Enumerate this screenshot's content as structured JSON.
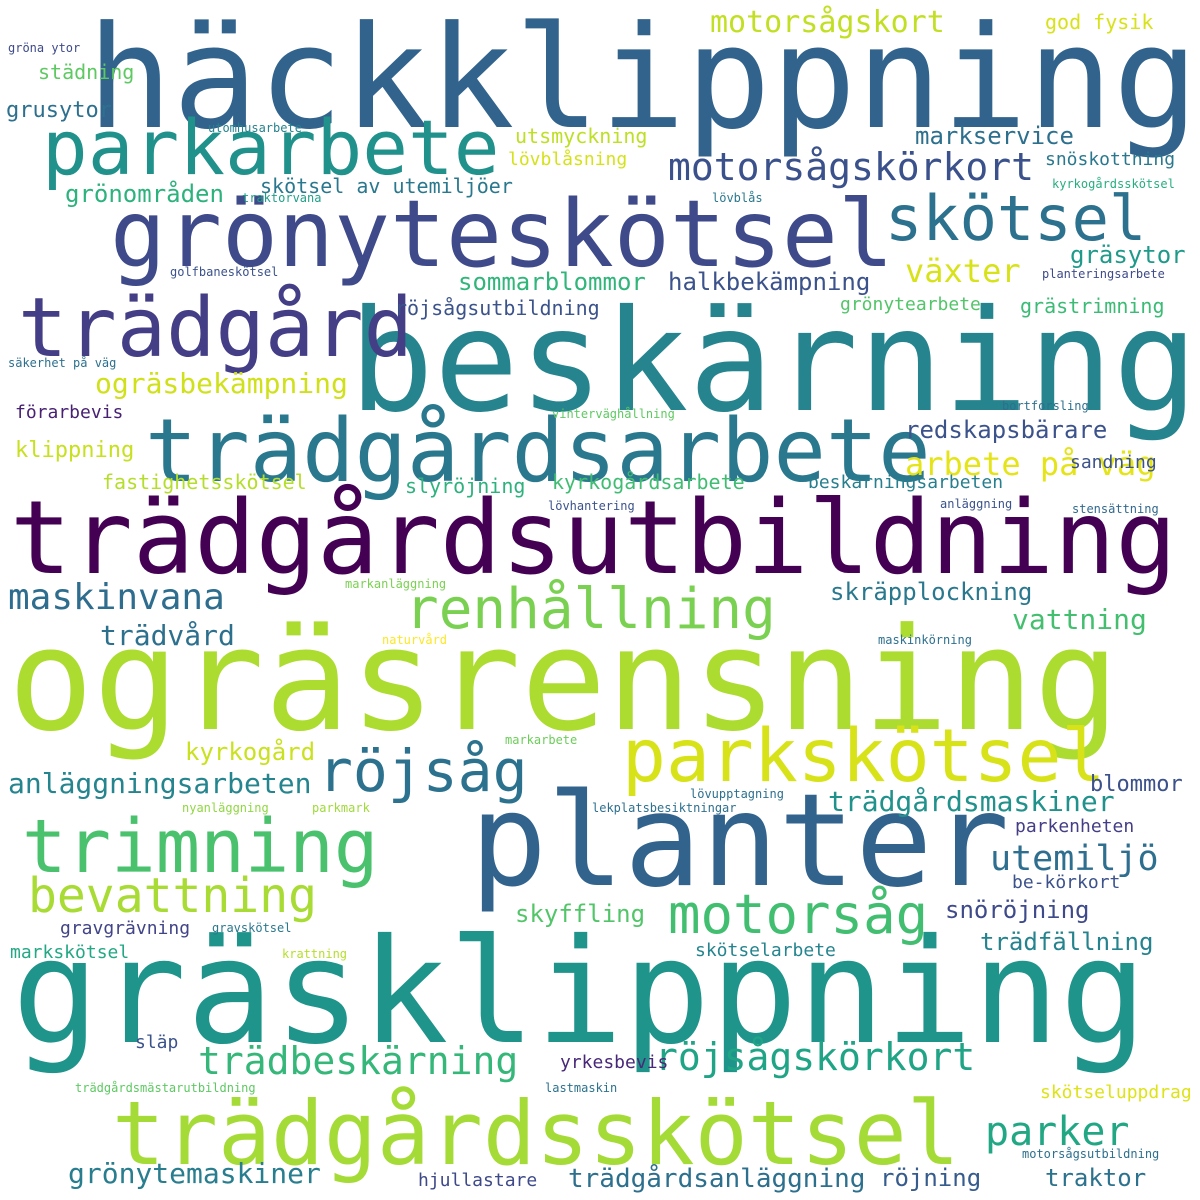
{
  "words": [
    {
      "text": "häckklippning",
      "color": "#31638d"
    },
    {
      "text": "beskärning",
      "color": "#25848e"
    },
    {
      "text": "ogräsrensning",
      "color": "#addc30"
    },
    {
      "text": "gräsklippning",
      "color": "#1f948b"
    },
    {
      "text": "trädgårdsutbildning",
      "color": "#440154"
    },
    {
      "text": "grönyteskötsel",
      "color": "#3e4a89"
    },
    {
      "text": "trädgårdsarbete",
      "color": "#2a788e"
    },
    {
      "text": "planter",
      "color": "#31638d"
    },
    {
      "text": "trädgårdsskötsel",
      "color": "#a5db36"
    },
    {
      "text": "parkarbete",
      "color": "#21918c"
    },
    {
      "text": "trädgård",
      "color": "#433e85"
    },
    {
      "text": "parkskötsel",
      "color": "#d8e219"
    },
    {
      "text": "trimning",
      "color": "#4ac16d"
    },
    {
      "text": "renhållning",
      "color": "#7ad151"
    },
    {
      "text": "skötsel",
      "color": "#2c718e"
    },
    {
      "text": "röjsåg",
      "color": "#2c728e"
    },
    {
      "text": "motorsåg",
      "color": "#42be71"
    },
    {
      "text": "motorsågskörkort",
      "color": "#3b518b"
    },
    {
      "text": "bevattning",
      "color": "#a8db34"
    },
    {
      "text": "trädbeskärning",
      "color": "#35b779"
    },
    {
      "text": "röjsågskörkort",
      "color": "#20a486"
    },
    {
      "text": "parker",
      "color": "#22a785"
    },
    {
      "text": "utemiljö",
      "color": "#2e6e8e"
    },
    {
      "text": "maskinvana",
      "color": "#2e6d8e"
    },
    {
      "text": "växter",
      "color": "#d8e219"
    },
    {
      "text": "arbete på väg",
      "color": "#e5e419"
    },
    {
      "text": "motorsågskort",
      "color": "#c2df23"
    },
    {
      "text": "ogräsbekämpning",
      "color": "#d0e11c"
    },
    {
      "text": "trädgårdsmaskiner",
      "color": "#21918c"
    },
    {
      "text": "grönytemaskiner",
      "color": "#287d8e"
    },
    {
      "text": "trädgårdsanläggning",
      "color": "#2d708e"
    },
    {
      "text": "anläggningsarbeten",
      "color": "#25858e"
    },
    {
      "text": "halkbekämpning",
      "color": "#3b528b"
    },
    {
      "text": "sommarblommor",
      "color": "#31b57b"
    },
    {
      "text": "markservice",
      "color": "#2d708e"
    },
    {
      "text": "gräsytor",
      "color": "#1f9a8a"
    },
    {
      "text": "redskapsbärare",
      "color": "#3b528b"
    },
    {
      "text": "skräpplockning",
      "color": "#2a788e"
    },
    {
      "text": "vattning",
      "color": "#44bf70"
    },
    {
      "text": "trädvård",
      "color": "#2d708e"
    },
    {
      "text": "kyrkogård",
      "color": "#cae11f"
    },
    {
      "text": "snöröjning",
      "color": "#3e4a89"
    },
    {
      "text": "trädfällning",
      "color": "#25838e"
    },
    {
      "text": "skyffling",
      "color": "#52c569"
    },
    {
      "text": "traktor",
      "color": "#2c728e"
    },
    {
      "text": "röjning",
      "color": "#365c8d"
    },
    {
      "text": "blommor",
      "color": "#3b518b"
    },
    {
      "text": "grönområden",
      "color": "#2db27d"
    },
    {
      "text": "skötsel av utemiljöer",
      "color": "#2a788e"
    },
    {
      "text": "röjsågsutbildning",
      "color": "#3b528b"
    },
    {
      "text": "utsmyckning",
      "color": "#bddf26"
    },
    {
      "text": "lövblåsning",
      "color": "#d5e21a"
    },
    {
      "text": "städning",
      "color": "#5ec962"
    },
    {
      "text": "grusytor",
      "color": "#2d708e"
    },
    {
      "text": "god fysik",
      "color": "#d8e219"
    },
    {
      "text": "snöskottning",
      "color": "#2a788e"
    },
    {
      "text": "grästrimning",
      "color": "#3bbb75"
    },
    {
      "text": "grönytearbete",
      "color": "#52c569"
    },
    {
      "text": "klippning",
      "color": "#c8e020"
    },
    {
      "text": "fastighetsskötsel",
      "color": "#b5de2b"
    },
    {
      "text": "slyröjning",
      "color": "#2db27d"
    },
    {
      "text": "kyrkogårdsarbete",
      "color": "#40bd72"
    },
    {
      "text": "beskärningsarbeten",
      "color": "#277f8e"
    },
    {
      "text": "sandning",
      "color": "#3b528b"
    },
    {
      "text": "förarbevis",
      "color": "#482173"
    },
    {
      "text": "be-körkort",
      "color": "#3b528b"
    },
    {
      "text": "parkenheten",
      "color": "#433e85"
    },
    {
      "text": "skötselarbete",
      "color": "#25848e"
    },
    {
      "text": "gravgrävning",
      "color": "#414487"
    },
    {
      "text": "markskötsel",
      "color": "#22a884"
    },
    {
      "text": "yrkesbevis",
      "color": "#482878"
    },
    {
      "text": "släp",
      "color": "#3b528b"
    },
    {
      "text": "hjullastare",
      "color": "#3e4989"
    },
    {
      "text": "skötseluppdrag",
      "color": "#dde318"
    },
    {
      "text": "gröna ytor",
      "color": "#3e4a89"
    },
    {
      "text": "utomhusarbete",
      "color": "#26828e"
    },
    {
      "text": "traktorvana",
      "color": "#1fa088"
    },
    {
      "text": "lövblås",
      "color": "#2a788e"
    },
    {
      "text": "kyrkogårdsskötsel",
      "color": "#27ad81"
    },
    {
      "text": "golfbaneskötsel",
      "color": "#3b528b"
    },
    {
      "text": "planteringsarbete",
      "color": "#3e4a89"
    },
    {
      "text": "säkerhet på väg",
      "color": "#2d708e"
    },
    {
      "text": "vinterväghållning",
      "color": "#5ec962"
    },
    {
      "text": "bortforsling",
      "color": "#2d708e"
    },
    {
      "text": "lövhantering",
      "color": "#3b528b"
    },
    {
      "text": "anläggning",
      "color": "#3b528b"
    },
    {
      "text": "stensättning",
      "color": "#31688e"
    },
    {
      "text": "markanläggning",
      "color": "#7ad151"
    },
    {
      "text": "naturvård",
      "color": "#fde725"
    },
    {
      "text": "maskinkörning",
      "color": "#2d708e"
    },
    {
      "text": "markarbete",
      "color": "#6ccd5a"
    },
    {
      "text": "nyanläggning",
      "color": "#90d743"
    },
    {
      "text": "parkmark",
      "color": "#9fda3a"
    },
    {
      "text": "lövupptagning",
      "color": "#2d708e"
    },
    {
      "text": "lekplatsbesiktningar",
      "color": "#2d708e"
    },
    {
      "text": "gravskötsel",
      "color": "#2a788e"
    },
    {
      "text": "krattning",
      "color": "#b5de2b"
    },
    {
      "text": "trädgårdsmästarutbildning",
      "color": "#5ec962"
    },
    {
      "text": "lastmaskin",
      "color": "#2c728e"
    },
    {
      "text": "motorsågsutbildning",
      "color": "#2d708e"
    }
  ]
}
